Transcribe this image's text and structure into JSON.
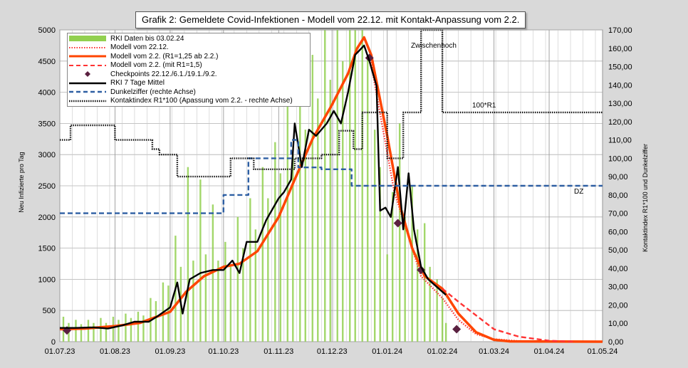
{
  "chart_data": {
    "type": "line",
    "title": "Grafik 2: Gemeldete Covid-Infektionen - Modell vom 22.12. mit Kontakt-Anpassung vom 2.2.",
    "ylabel": "Neu Infizierte pro Tag",
    "y2label": "Kontaktindex R1*100 und Dunkelziffer",
    "ylim": [
      0,
      5000
    ],
    "y2lim": [
      0,
      170
    ],
    "yticks": [
      "0",
      "500",
      "1000",
      "1500",
      "2000",
      "2500",
      "3000",
      "3500",
      "4000",
      "4500",
      "5000"
    ],
    "y2ticks": [
      "0,00",
      "10,00",
      "20,00",
      "30,00",
      "40,00",
      "50,00",
      "60,00",
      "70,00",
      "80,00",
      "90,00",
      "100,00",
      "110,00",
      "120,00",
      "130,00",
      "140,00",
      "150,00",
      "160,00",
      "170,00"
    ],
    "xticks": [
      "01.07.23",
      "01.08.23",
      "01.09.23",
      "01.10.23",
      "01.11.23",
      "01.12.23",
      "01.01.24",
      "01.02.24",
      "01.03.24",
      "01.04.24",
      "01.05.24"
    ],
    "xstart": "2023-07-01",
    "xend": "2024-05-01",
    "annotations": {
      "zwischenhoch": "Zwischenhoch",
      "r1": "100*R1",
      "dz": "DZ"
    },
    "colors": {
      "bars": "#92d050",
      "model_2212": "#ff3333",
      "model_22": "#ff4500",
      "model_22_r15": "#ff3333",
      "checkpoints": "#5a2040",
      "rki7": "#000000",
      "dunkel": "#2e5fa3",
      "kontakt": "#111111"
    },
    "series": [
      {
        "name": "RKI Daten bis 03.02.24",
        "type": "bar",
        "axis": "left",
        "color": "#92d050",
        "style": "bar",
        "points": [
          [
            "2023-07-03",
            400
          ],
          [
            "2023-07-06",
            300
          ],
          [
            "2023-07-10",
            350
          ],
          [
            "2023-07-13",
            280
          ],
          [
            "2023-07-17",
            350
          ],
          [
            "2023-07-20",
            300
          ],
          [
            "2023-07-24",
            380
          ],
          [
            "2023-07-27",
            300
          ],
          [
            "2023-07-31",
            400
          ],
          [
            "2023-08-03",
            350
          ],
          [
            "2023-08-07",
            450
          ],
          [
            "2023-08-10",
            380
          ],
          [
            "2023-08-14",
            480
          ],
          [
            "2023-08-17",
            420
          ],
          [
            "2023-08-21",
            700
          ],
          [
            "2023-08-24",
            650
          ],
          [
            "2023-08-28",
            950
          ],
          [
            "2023-08-31",
            900
          ],
          [
            "2023-09-04",
            1700
          ],
          [
            "2023-09-07",
            1200
          ],
          [
            "2023-09-11",
            2800
          ],
          [
            "2023-09-14",
            1300
          ],
          [
            "2023-09-18",
            2600
          ],
          [
            "2023-09-21",
            1400
          ],
          [
            "2023-09-25",
            2200
          ],
          [
            "2023-09-28",
            1300
          ],
          [
            "2023-10-02",
            1600
          ],
          [
            "2023-10-05",
            1200
          ],
          [
            "2023-10-09",
            2000
          ],
          [
            "2023-10-12",
            1500
          ],
          [
            "2023-10-16",
            2300
          ],
          [
            "2023-10-19",
            1800
          ],
          [
            "2023-10-23",
            2800
          ],
          [
            "2023-10-26",
            2300
          ],
          [
            "2023-10-30",
            3200
          ],
          [
            "2023-11-02",
            2700
          ],
          [
            "2023-11-06",
            3800
          ],
          [
            "2023-11-09",
            3000
          ],
          [
            "2023-11-13",
            4400
          ],
          [
            "2023-11-16",
            3400
          ],
          [
            "2023-11-20",
            4600
          ],
          [
            "2023-11-23",
            3900
          ],
          [
            "2023-11-27",
            5000
          ],
          [
            "2023-11-30",
            4200
          ],
          [
            "2023-12-04",
            5000
          ],
          [
            "2023-12-07",
            4500
          ],
          [
            "2023-12-11",
            5000
          ],
          [
            "2023-12-14",
            5000
          ],
          [
            "2023-12-18",
            5000
          ],
          [
            "2023-12-21",
            4600
          ],
          [
            "2023-12-25",
            3400
          ],
          [
            "2023-12-28",
            2800
          ],
          [
            "2024-01-01",
            1400
          ],
          [
            "2024-01-04",
            2400
          ],
          [
            "2024-01-08",
            3500
          ],
          [
            "2024-01-11",
            2000
          ],
          [
            "2024-01-15",
            2500
          ],
          [
            "2024-01-18",
            1800
          ],
          [
            "2024-01-22",
            1900
          ],
          [
            "2024-01-25",
            1200
          ],
          [
            "2024-01-29",
            1000
          ],
          [
            "2024-02-01",
            700
          ],
          [
            "2024-02-03",
            300
          ]
        ]
      },
      {
        "name": "Modell vom 22.12.",
        "type": "line",
        "axis": "left",
        "color": "#ff3333",
        "style": "dotted",
        "points": [
          [
            "2023-12-22",
            4600
          ],
          [
            "2024-01-05",
            2400
          ],
          [
            "2024-01-20",
            1050
          ],
          [
            "2024-02-01",
            700
          ],
          [
            "2024-02-10",
            350
          ],
          [
            "2024-02-20",
            120
          ],
          [
            "2024-03-01",
            40
          ],
          [
            "2024-03-15",
            10
          ],
          [
            "2024-04-01",
            0
          ]
        ]
      },
      {
        "name": "Modell vom 2.2. (R1=1,25 ab 2.2.)",
        "type": "line",
        "axis": "left",
        "color": "#ff4500",
        "style": "solid",
        "points": [
          [
            "2023-07-01",
            200
          ],
          [
            "2023-07-15",
            210
          ],
          [
            "2023-08-01",
            250
          ],
          [
            "2023-08-15",
            300
          ],
          [
            "2023-09-01",
            480
          ],
          [
            "2023-09-10",
            800
          ],
          [
            "2023-09-20",
            1050
          ],
          [
            "2023-10-01",
            1200
          ],
          [
            "2023-10-10",
            1250
          ],
          [
            "2023-10-20",
            1450
          ],
          [
            "2023-11-01",
            2000
          ],
          [
            "2023-11-10",
            2600
          ],
          [
            "2023-11-20",
            3250
          ],
          [
            "2023-12-01",
            3800
          ],
          [
            "2023-12-10",
            4300
          ],
          [
            "2023-12-15",
            4700
          ],
          [
            "2023-12-19",
            4880
          ],
          [
            "2023-12-23",
            4600
          ],
          [
            "2024-01-01",
            3300
          ],
          [
            "2024-01-08",
            2200
          ],
          [
            "2024-01-15",
            1500
          ],
          [
            "2024-01-22",
            1050
          ],
          [
            "2024-02-01",
            850
          ],
          [
            "2024-02-10",
            450
          ],
          [
            "2024-02-20",
            150
          ],
          [
            "2024-03-01",
            30
          ],
          [
            "2024-03-10",
            5
          ],
          [
            "2024-05-01",
            0
          ]
        ]
      },
      {
        "name": "Modell vom 2.2. (mit R1=1,5)",
        "type": "line",
        "axis": "left",
        "color": "#ff3333",
        "style": "dashed",
        "points": [
          [
            "2024-02-01",
            850
          ],
          [
            "2024-02-10",
            640
          ],
          [
            "2024-02-20",
            420
          ],
          [
            "2024-03-01",
            200
          ],
          [
            "2024-03-15",
            80
          ],
          [
            "2024-04-01",
            15
          ],
          [
            "2024-04-15",
            0
          ]
        ]
      },
      {
        "name": "Checkpoints 22.12./6.1./19.1./9.2.",
        "type": "scatter",
        "axis": "left",
        "color": "#5a2040",
        "style": "diamond",
        "points": [
          [
            "2023-07-05",
            180
          ],
          [
            "2023-12-22",
            4550
          ],
          [
            "2024-01-07",
            1900
          ],
          [
            "2024-01-20",
            1150
          ],
          [
            "2024-02-09",
            200
          ]
        ]
      },
      {
        "name": "RKI 7 Tage Mittel",
        "type": "line",
        "axis": "left",
        "color": "#000000",
        "style": "solid",
        "points": [
          [
            "2023-07-01",
            220
          ],
          [
            "2023-07-10",
            220
          ],
          [
            "2023-07-20",
            230
          ],
          [
            "2023-07-28",
            210
          ],
          [
            "2023-08-05",
            260
          ],
          [
            "2023-08-12",
            320
          ],
          [
            "2023-08-20",
            320
          ],
          [
            "2023-08-25",
            410
          ],
          [
            "2023-09-01",
            550
          ],
          [
            "2023-09-05",
            950
          ],
          [
            "2023-09-08",
            450
          ],
          [
            "2023-09-12",
            1000
          ],
          [
            "2023-09-18",
            1100
          ],
          [
            "2023-09-25",
            1150
          ],
          [
            "2023-10-01",
            1150
          ],
          [
            "2023-10-06",
            1300
          ],
          [
            "2023-10-10",
            1100
          ],
          [
            "2023-10-14",
            1600
          ],
          [
            "2023-10-20",
            1600
          ],
          [
            "2023-10-25",
            1950
          ],
          [
            "2023-11-01",
            2300
          ],
          [
            "2023-11-04",
            2400
          ],
          [
            "2023-11-08",
            2600
          ],
          [
            "2023-11-10",
            3500
          ],
          [
            "2023-11-14",
            2800
          ],
          [
            "2023-11-18",
            3400
          ],
          [
            "2023-11-22",
            3300
          ],
          [
            "2023-11-28",
            3500
          ],
          [
            "2023-12-02",
            3700
          ],
          [
            "2023-12-06",
            3500
          ],
          [
            "2023-12-10",
            4000
          ],
          [
            "2023-12-14",
            4600
          ],
          [
            "2023-12-19",
            4750
          ],
          [
            "2023-12-22",
            4500
          ],
          [
            "2023-12-26",
            4100
          ],
          [
            "2023-12-28",
            2100
          ],
          [
            "2023-12-31",
            2150
          ],
          [
            "2024-01-03",
            2000
          ],
          [
            "2024-01-07",
            2800
          ],
          [
            "2024-01-10",
            1800
          ],
          [
            "2024-01-13",
            2700
          ],
          [
            "2024-01-16",
            1800
          ],
          [
            "2024-01-20",
            1200
          ],
          [
            "2024-01-24",
            1000
          ],
          [
            "2024-01-28",
            900
          ],
          [
            "2024-02-03",
            750
          ]
        ]
      },
      {
        "name": "Dunkelziffer (rechte Achse)",
        "type": "line",
        "axis": "right",
        "color": "#2e5fa3",
        "style": "dashed",
        "points": [
          [
            "2023-07-01",
            70
          ],
          [
            "2023-10-01",
            70
          ],
          [
            "2023-10-01",
            80
          ],
          [
            "2023-10-15",
            80
          ],
          [
            "2023-10-15",
            100
          ],
          [
            "2023-11-08",
            100
          ],
          [
            "2023-11-08",
            110
          ],
          [
            "2023-11-12",
            110
          ],
          [
            "2023-11-12",
            95
          ],
          [
            "2023-11-25",
            95
          ],
          [
            "2023-11-25",
            94
          ],
          [
            "2023-12-12",
            94
          ],
          [
            "2023-12-12",
            85
          ],
          [
            "2024-05-01",
            85
          ]
        ]
      },
      {
        "name": "Kontaktindex R1*100 (Apassung vom 2.2. - rechte Achse)",
        "type": "line",
        "axis": "right",
        "color": "#111111",
        "style": "dotted",
        "points": [
          [
            "2023-07-01",
            110
          ],
          [
            "2023-07-07",
            110
          ],
          [
            "2023-07-07",
            118
          ],
          [
            "2023-08-01",
            118
          ],
          [
            "2023-08-01",
            110
          ],
          [
            "2023-08-22",
            110
          ],
          [
            "2023-08-22",
            105
          ],
          [
            "2023-08-26",
            105
          ],
          [
            "2023-08-26",
            102
          ],
          [
            "2023-09-05",
            102
          ],
          [
            "2023-09-05",
            90
          ],
          [
            "2023-10-05",
            90
          ],
          [
            "2023-10-05",
            100
          ],
          [
            "2023-10-18",
            100
          ],
          [
            "2023-10-18",
            94
          ],
          [
            "2023-11-10",
            94
          ],
          [
            "2023-11-10",
            100
          ],
          [
            "2023-11-25",
            100
          ],
          [
            "2023-11-25",
            102
          ],
          [
            "2023-12-05",
            102
          ],
          [
            "2023-12-05",
            115
          ],
          [
            "2023-12-13",
            115
          ],
          [
            "2023-12-13",
            105
          ],
          [
            "2023-12-18",
            105
          ],
          [
            "2023-12-18",
            125
          ],
          [
            "2024-01-01",
            125
          ],
          [
            "2024-01-01",
            100
          ],
          [
            "2024-01-10",
            100
          ],
          [
            "2024-01-10",
            125
          ],
          [
            "2024-01-20",
            125
          ],
          [
            "2024-01-20",
            170
          ],
          [
            "2024-02-01",
            170
          ],
          [
            "2024-02-01",
            125
          ],
          [
            "2024-05-01",
            125
          ]
        ]
      }
    ]
  }
}
